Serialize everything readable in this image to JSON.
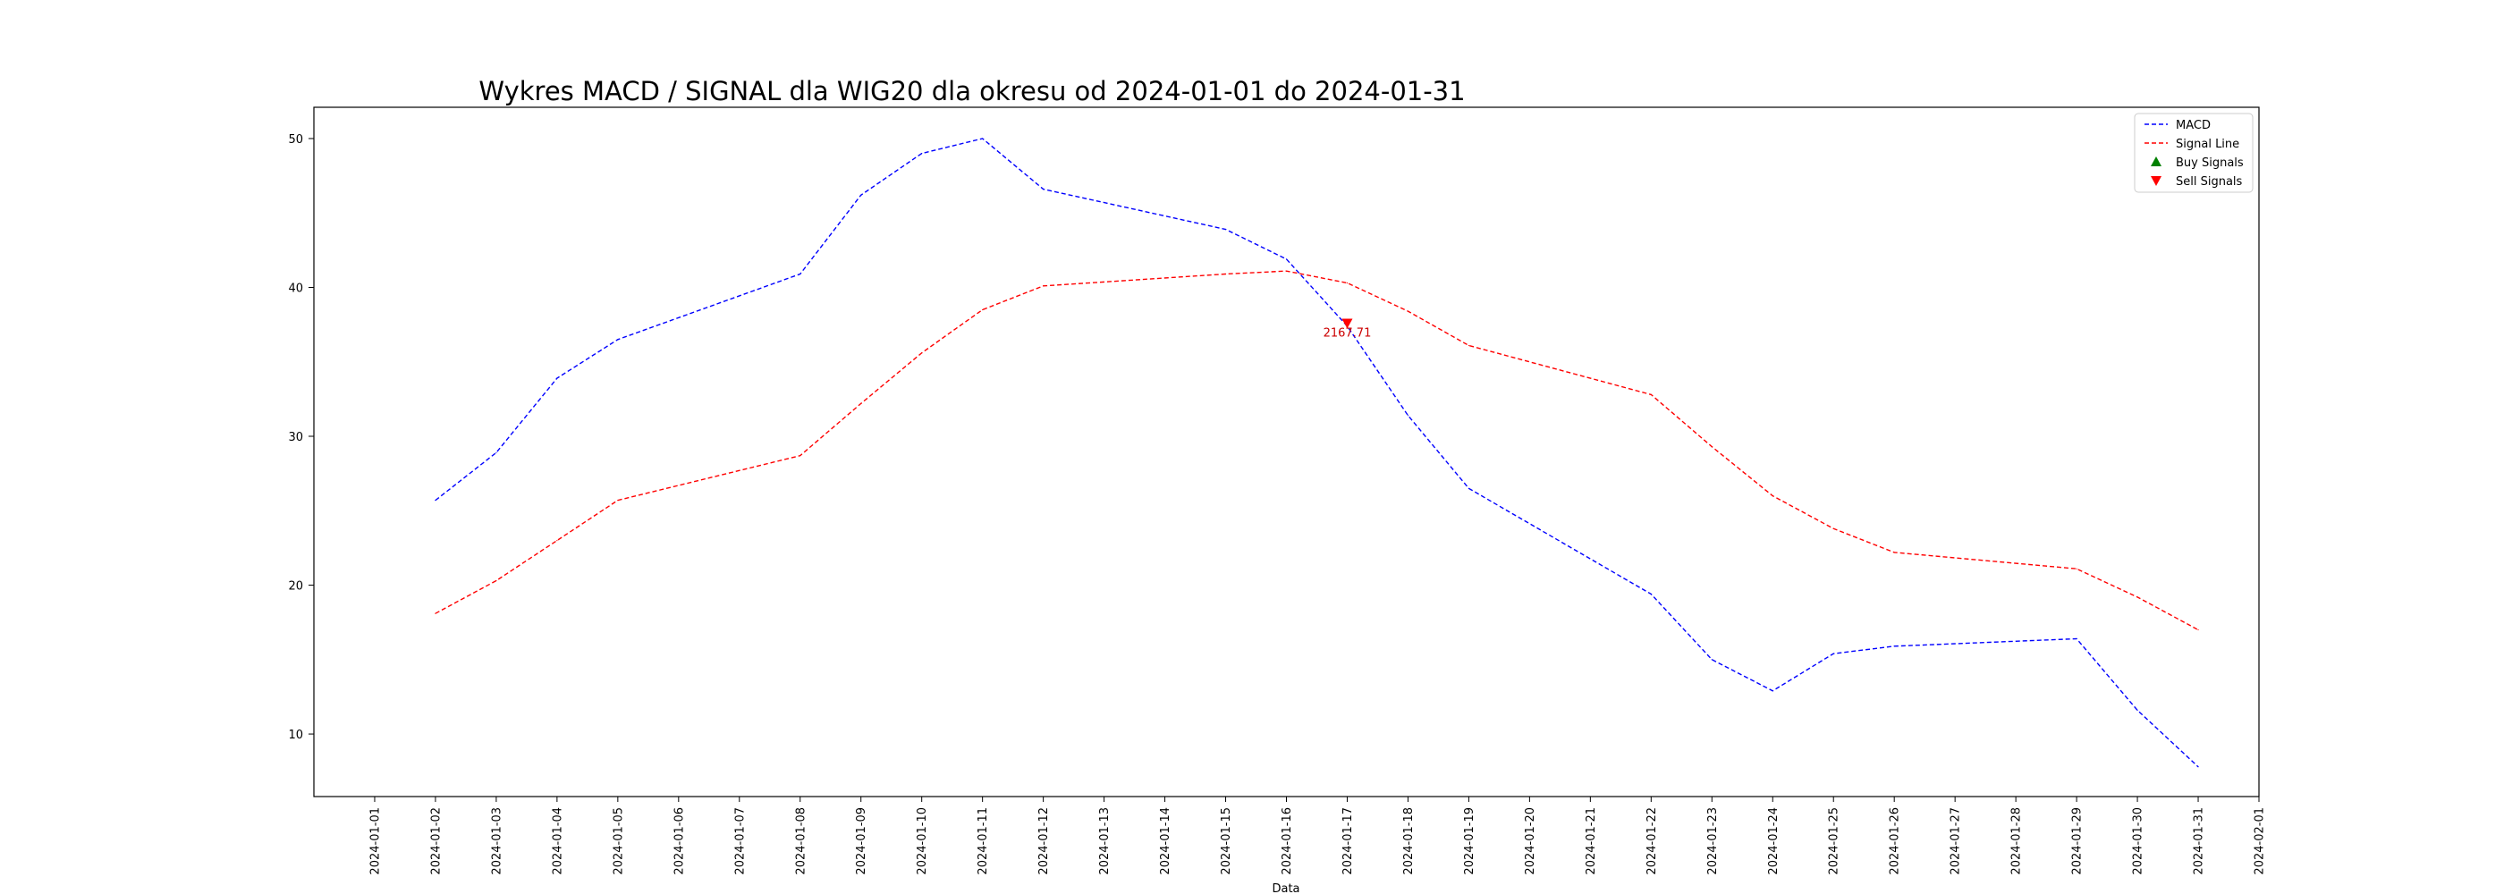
{
  "chart_data": {
    "type": "line",
    "title": "Wykres MACD / SIGNAL dla WIG20 dla okresu od 2024-01-01 do 2024-01-31",
    "xlabel": "Data",
    "ylabel": "",
    "ylim": [
      5.8,
      52.1
    ],
    "xlim": [
      "2023-12-31",
      "2024-02-01"
    ],
    "x_ticks": [
      "2024-01-01",
      "2024-01-02",
      "2024-01-03",
      "2024-01-04",
      "2024-01-05",
      "2024-01-06",
      "2024-01-07",
      "2024-01-08",
      "2024-01-09",
      "2024-01-10",
      "2024-01-11",
      "2024-01-12",
      "2024-01-13",
      "2024-01-14",
      "2024-01-15",
      "2024-01-16",
      "2024-01-17",
      "2024-01-18",
      "2024-01-19",
      "2024-01-20",
      "2024-01-21",
      "2024-01-22",
      "2024-01-23",
      "2024-01-24",
      "2024-01-25",
      "2024-01-26",
      "2024-01-27",
      "2024-01-28",
      "2024-01-29",
      "2024-01-30",
      "2024-01-31",
      "2024-02-01"
    ],
    "y_ticks": [
      10,
      20,
      30,
      40,
      50
    ],
    "grid": false,
    "legend_position": "top-right",
    "series": [
      {
        "name": "MACD",
        "color": "#0000ff",
        "style": "dashed",
        "x": [
          "2024-01-02",
          "2024-01-03",
          "2024-01-04",
          "2024-01-05",
          "2024-01-08",
          "2024-01-09",
          "2024-01-10",
          "2024-01-11",
          "2024-01-12",
          "2024-01-15",
          "2024-01-16",
          "2024-01-17",
          "2024-01-18",
          "2024-01-19",
          "2024-01-22",
          "2024-01-23",
          "2024-01-24",
          "2024-01-25",
          "2024-01-26",
          "2024-01-29",
          "2024-01-30",
          "2024-01-31"
        ],
        "values": [
          25.7,
          28.9,
          33.9,
          36.5,
          40.9,
          46.2,
          49.0,
          50.0,
          46.6,
          43.9,
          41.9,
          37.4,
          31.4,
          26.5,
          19.4,
          15.0,
          12.9,
          15.4,
          15.9,
          16.4,
          11.6,
          7.8
        ]
      },
      {
        "name": "Signal Line",
        "color": "#ff0000",
        "style": "dashed",
        "x": [
          "2024-01-02",
          "2024-01-03",
          "2024-01-04",
          "2024-01-05",
          "2024-01-08",
          "2024-01-09",
          "2024-01-10",
          "2024-01-11",
          "2024-01-12",
          "2024-01-15",
          "2024-01-16",
          "2024-01-17",
          "2024-01-18",
          "2024-01-19",
          "2024-01-22",
          "2024-01-23",
          "2024-01-24",
          "2024-01-25",
          "2024-01-26",
          "2024-01-29",
          "2024-01-30",
          "2024-01-31"
        ],
        "values": [
          18.1,
          20.3,
          23.0,
          25.7,
          28.7,
          32.2,
          35.6,
          38.5,
          40.1,
          40.9,
          41.1,
          40.3,
          38.4,
          36.1,
          32.8,
          29.3,
          26.0,
          23.8,
          22.2,
          21.1,
          19.2,
          17.0
        ]
      }
    ],
    "legend": [
      {
        "label": "MACD",
        "marker": "line",
        "color": "#0000ff"
      },
      {
        "label": "Signal Line",
        "marker": "line",
        "color": "#ff0000"
      },
      {
        "label": "Buy Signals",
        "marker": "triangle-up",
        "color": "#008000"
      },
      {
        "label": "Sell Signals",
        "marker": "triangle-down",
        "color": "#ff0000"
      }
    ],
    "buy_signals": [],
    "sell_signals": [
      {
        "x": "2024-01-17",
        "y": 37.6,
        "label": "2167.71"
      }
    ]
  }
}
